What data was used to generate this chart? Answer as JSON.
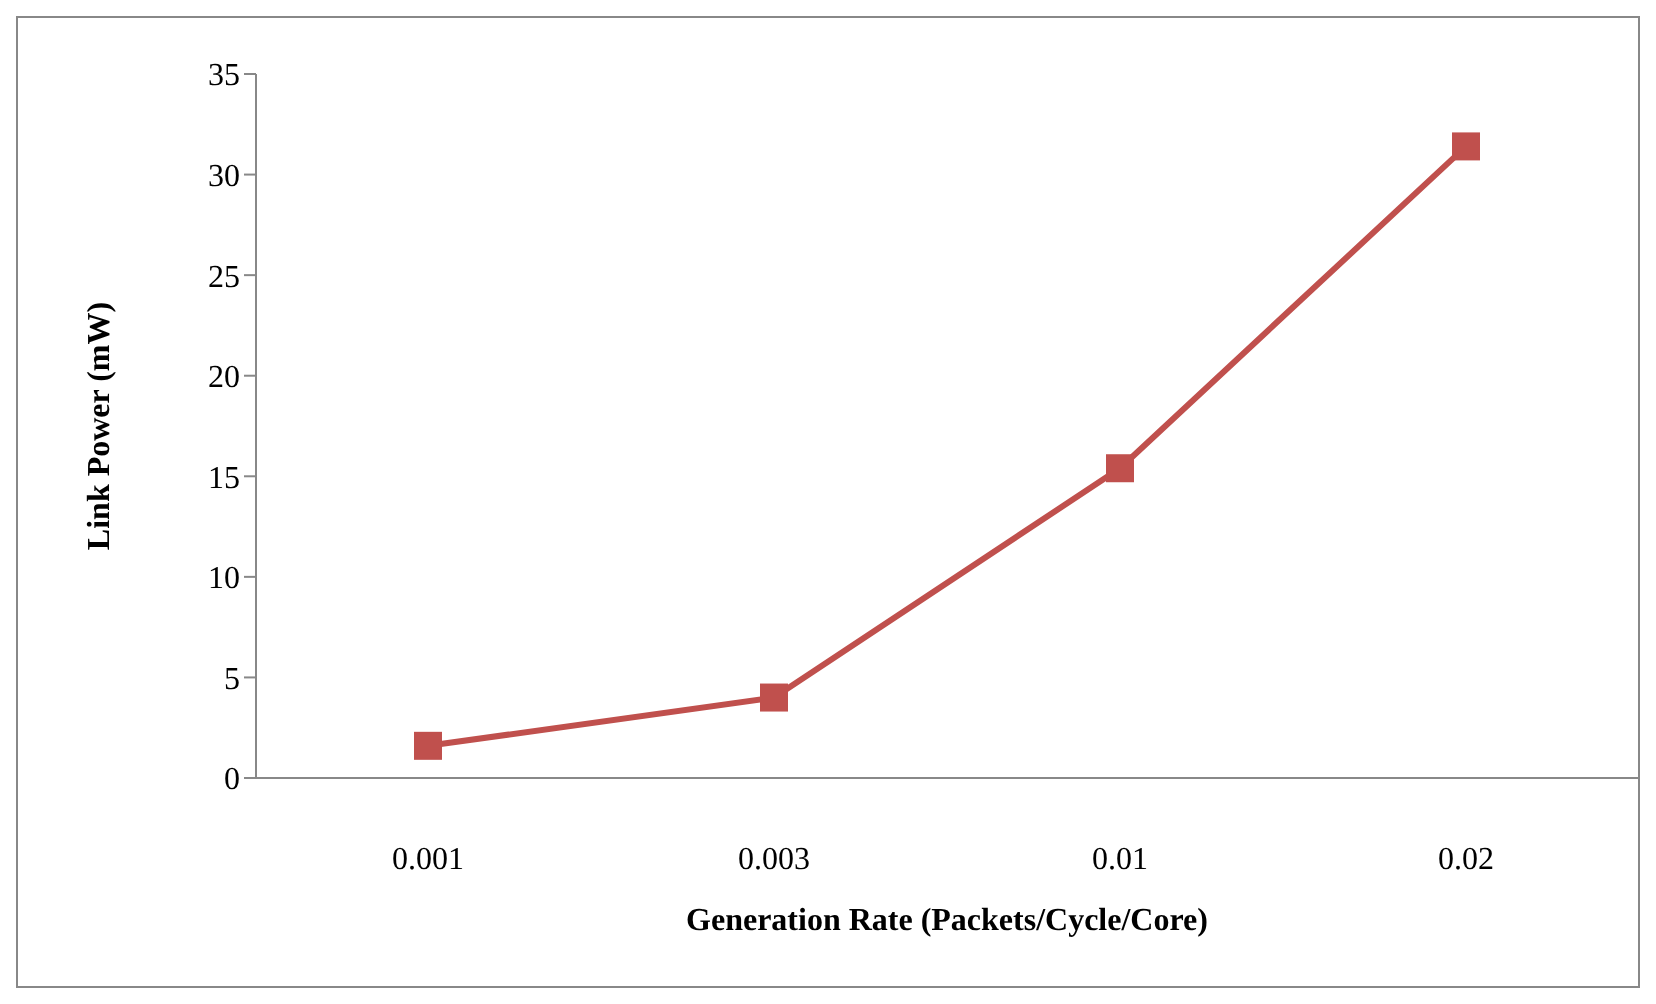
{
  "chart_data": {
    "type": "line",
    "xlabel": "Generation Rate (Packets/Cycle/Core)",
    "ylabel": "Link Power (mW)",
    "categories": [
      "0.001",
      "0.003",
      "0.01",
      "0.02"
    ],
    "series": [
      {
        "color": "#c0504d",
        "values": [
          1.6,
          4.0,
          15.4,
          31.4
        ]
      }
    ],
    "ylim": [
      0,
      35
    ],
    "yticks": [
      0,
      5,
      10,
      15,
      20,
      25,
      30,
      35
    ],
    "grid": false,
    "legend": false,
    "marker": "square",
    "line_style": "solid"
  }
}
